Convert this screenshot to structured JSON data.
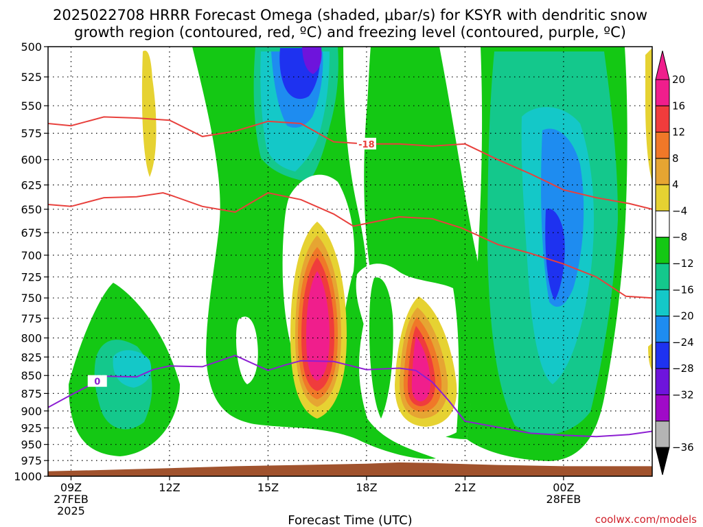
{
  "title_line1": "2025022708 HRRR Forecast Omega (shaded, μbar/s) for KSYR with dendritic snow",
  "title_line2": "growth region (contoured, red, ºC) and freezing level (contoured, purple, ºC)",
  "xlabel": "Forecast Time (UTC)",
  "credit": "coolwx.com/models",
  "chart_data": {
    "type": "time-height contour",
    "xlim_hours": [
      8.3,
      26.7
    ],
    "ylim_hpa": [
      1000,
      500
    ],
    "y_scale": "log-pressure",
    "grid": "dotted",
    "x_ticks": [
      {
        "hour": 9,
        "label": "09Z",
        "sub1": "27FEB",
        "sub2": "2025"
      },
      {
        "hour": 12,
        "label": "12Z",
        "sub1": "",
        "sub2": ""
      },
      {
        "hour": 15,
        "label": "15Z",
        "sub1": "",
        "sub2": ""
      },
      {
        "hour": 18,
        "label": "18Z",
        "sub1": "",
        "sub2": ""
      },
      {
        "hour": 21,
        "label": "21Z",
        "sub1": "",
        "sub2": ""
      },
      {
        "hour": 24,
        "label": "00Z",
        "sub1": "28FEB",
        "sub2": ""
      }
    ],
    "y_ticks": [
      "500",
      "525",
      "550",
      "575",
      "600",
      "625",
      "650",
      "675",
      "700",
      "725",
      "750",
      "775",
      "800",
      "825",
      "850",
      "875",
      "900",
      "925",
      "950",
      "975",
      "1000"
    ],
    "y_tick_values": [
      500,
      525,
      550,
      575,
      600,
      625,
      650,
      675,
      700,
      725,
      750,
      775,
      800,
      825,
      850,
      875,
      900,
      925,
      950,
      975,
      1000
    ],
    "colorbar": {
      "labels": [
        "20",
        "16",
        "12",
        "8",
        "4",
        "−4",
        "−8",
        "−12",
        "−16",
        "−20",
        "−24",
        "−28",
        "−32",
        "−36"
      ],
      "colors": [
        "#f01e8c",
        "#f03c3c",
        "#f07828",
        "#e6a532",
        "#e6d232",
        "#ffffff",
        "#14c814",
        "#14c88c",
        "#14c8c8",
        "#1e8cf0",
        "#1e32f0",
        "#6e14dc",
        "#a00ac8",
        "#b4b4b4"
      ]
    },
    "contours": [
      {
        "name": "dendritic-upper",
        "value": "-18",
        "color": "#e8403c",
        "points": [
          [
            8.3,
            566
          ],
          [
            9,
            568
          ],
          [
            10,
            560
          ],
          [
            11,
            561
          ],
          [
            12,
            563
          ],
          [
            13,
            578
          ],
          [
            14,
            573
          ],
          [
            15,
            564
          ],
          [
            16,
            566
          ],
          [
            17,
            583
          ],
          [
            18,
            585
          ],
          [
            19,
            585
          ],
          [
            20,
            587
          ],
          [
            21,
            585
          ],
          [
            22,
            600
          ],
          [
            23,
            614
          ],
          [
            24,
            630
          ],
          [
            25,
            638
          ],
          [
            26,
            644
          ],
          [
            26.7,
            650
          ]
        ]
      },
      {
        "name": "dendritic-lower",
        "value": "",
        "color": "#e8403c",
        "points": [
          [
            8.3,
            645
          ],
          [
            9,
            647
          ],
          [
            10,
            638
          ],
          [
            11,
            637
          ],
          [
            11.8,
            633
          ],
          [
            12,
            635
          ],
          [
            13,
            647
          ],
          [
            14,
            653
          ],
          [
            15,
            633
          ],
          [
            16,
            640
          ],
          [
            17,
            655
          ],
          [
            17.6,
            668
          ],
          [
            18,
            665
          ],
          [
            19,
            658
          ],
          [
            20,
            660
          ],
          [
            20.9,
            670
          ],
          [
            22,
            688
          ],
          [
            23,
            698
          ],
          [
            24,
            710
          ],
          [
            25,
            725
          ],
          [
            25.9,
            748
          ],
          [
            26.7,
            750
          ]
        ]
      },
      {
        "name": "freezing-level",
        "value": "0",
        "color": "#8c1ed2",
        "points": [
          [
            8.3,
            895
          ],
          [
            9,
            877
          ],
          [
            9.8,
            858
          ],
          [
            10,
            851
          ],
          [
            11,
            852
          ],
          [
            11.5,
            842
          ],
          [
            12,
            837
          ],
          [
            13,
            838
          ],
          [
            14,
            823
          ],
          [
            15,
            843
          ],
          [
            15.5,
            836
          ],
          [
            16,
            830
          ],
          [
            17,
            831
          ],
          [
            18,
            842
          ],
          [
            19,
            840
          ],
          [
            19.5,
            843
          ],
          [
            20,
            859
          ],
          [
            20.5,
            885
          ],
          [
            21,
            915
          ],
          [
            22,
            924
          ],
          [
            23,
            933
          ],
          [
            24,
            936
          ],
          [
            25,
            938
          ],
          [
            26,
            935
          ],
          [
            26.7,
            930
          ]
        ]
      }
    ],
    "terrain": {
      "name": "surface",
      "color": "#a0522d",
      "points": [
        [
          8.3,
          992
        ],
        [
          10,
          990
        ],
        [
          12,
          987
        ],
        [
          14,
          984
        ],
        [
          16,
          982
        ],
        [
          18,
          980
        ],
        [
          19,
          978
        ],
        [
          20,
          979
        ],
        [
          22,
          982
        ],
        [
          24,
          984
        ],
        [
          26.7,
          984
        ]
      ]
    }
  }
}
